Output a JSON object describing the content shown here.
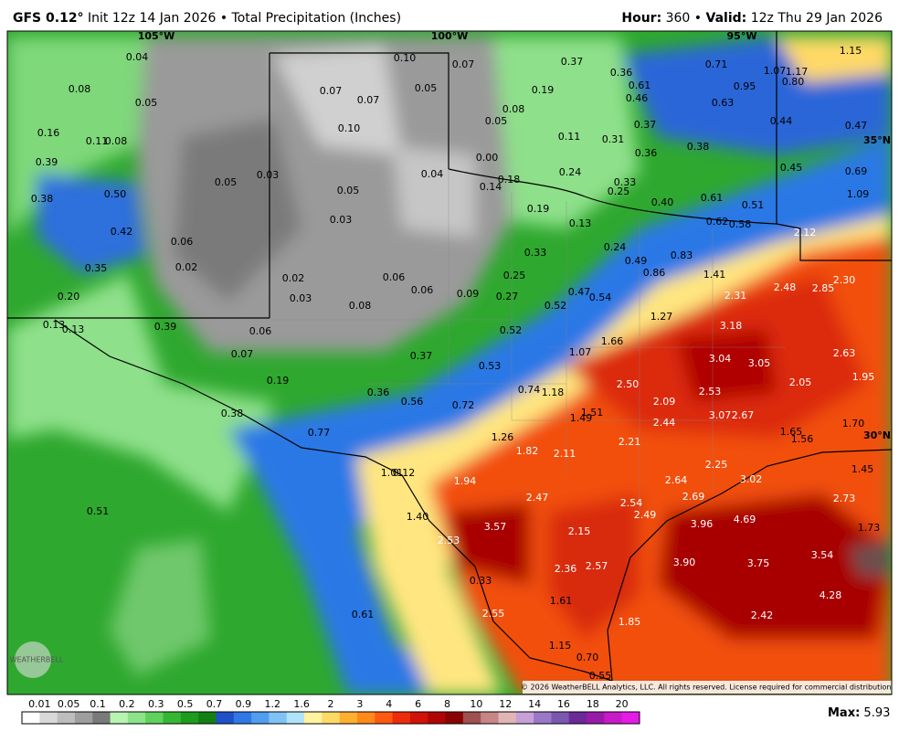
{
  "header": {
    "model": "GFS 0.12°",
    "desc": " Init 12z 14 Jan 2026 • Total Precipitation (Inches)",
    "hour_key": "Hour:",
    "hour": " 360 • ",
    "valid_key": "Valid:",
    "valid": " 12z Thu 29 Jan 2026"
  },
  "map": {
    "grid_labels": [
      "105°W",
      "100°W",
      "95°W",
      "35°N",
      "30°N"
    ],
    "labels": [
      "0.04",
      "0.10",
      "0.07",
      "0.37",
      "0.36",
      "0.71",
      "1.07",
      "1.17",
      "1.15",
      "0.08",
      "0.05",
      "0.07",
      "0.07",
      "0.05",
      "0.19",
      "0.61",
      "0.95",
      "0.80",
      "0.46",
      "0.63",
      "0.08",
      "0.05",
      "0.10",
      "0.16",
      "0.11",
      "0.08",
      "0.44",
      "0.47",
      "0.37",
      "0.11",
      "0.31",
      "0.36",
      "0.38",
      "0.39",
      "0.03",
      "0.05",
      "0.04",
      "0.00",
      "0.24",
      "0.18",
      "0.14",
      "0.33",
      "0.25",
      "0.45",
      "0.69",
      "0.38",
      "0.50",
      "0.05",
      "0.40",
      "0.61",
      "0.51",
      "1.09",
      "0.19",
      "0.03",
      "0.13",
      "0.62",
      "0.58",
      "0.42",
      "2.12",
      "0.06",
      "0.33",
      "0.24",
      "0.83",
      "0.49",
      "0.35",
      "0.02",
      "0.86",
      "1.41",
      "0.25",
      "0.06",
      "0.02",
      "2.48",
      "2.85",
      "2.30",
      "0.20",
      "0.06",
      "0.09",
      "0.27",
      "0.47",
      "0.54",
      "2.31",
      "0.03",
      "0.08",
      "0.52",
      "1.27",
      "0.13",
      "0.13",
      "0.39",
      "0.06",
      "3.18",
      "0.52",
      "1.66",
      "0.07",
      "0.37",
      "1.07",
      "3.04",
      "3.05",
      "2.63",
      "0.53",
      "1.95",
      "0.19",
      "0.36",
      "0.56",
      "0.72",
      "0.74",
      "1.18",
      "2.50",
      "2.53",
      "2.05",
      "2.09",
      "1.49",
      "1.51",
      "0.38",
      "3.07",
      "2.67",
      "2.44",
      "1.70",
      "0.77",
      "1.26",
      "1.65",
      "1.56",
      "2.21",
      "1.82",
      "2.11",
      "1.45",
      "1.01",
      "0.12",
      "1.94",
      "2.25",
      "2.64",
      "3.02",
      "2.47",
      "2.69",
      "2.73",
      "2.54",
      "0.51",
      "2.49",
      "1.40",
      "3.57",
      "3.96",
      "4.69",
      "2.15",
      "1.73",
      "2.53",
      "3.54",
      "3.90",
      "3.75",
      "2.36",
      "2.57",
      "0.33",
      "1.61",
      "4.28",
      "2.55",
      "0.61",
      "2.42",
      "1.85",
      "1.15",
      "0.70",
      "0.55"
    ],
    "copyright": "© 2026 WeatherBELL Analytics, LLC. All rights reserved. License required for commercial distribution.",
    "logo": "WEATHERBELL"
  },
  "colorbar": {
    "labels": [
      "0.01",
      "0.05",
      "0.1",
      "0.2",
      "0.3",
      "0.5",
      "0.7",
      "0.9",
      "1.2",
      "1.6",
      "2",
      "3",
      "4",
      "6",
      "8",
      "10",
      "12",
      "14",
      "16",
      "18",
      "20"
    ],
    "colors": [
      "#ffffff",
      "#d9d9d9",
      "#bdbdbd",
      "#9e9e9e",
      "#7a7a7a",
      "#b6f5b0",
      "#8ce38a",
      "#5fd15c",
      "#34b834",
      "#1e9c1e",
      "#138013",
      "#1e50c8",
      "#2f78e6",
      "#4f9ef0",
      "#7fc3f5",
      "#b0e3fa",
      "#fff3a0",
      "#ffd966",
      "#ffb030",
      "#ff8a1a",
      "#ff5a10",
      "#ee2b0b",
      "#d01208",
      "#b00505",
      "#8a0303",
      "#a05050",
      "#c78585",
      "#e2b5b5",
      "#c8a0d8",
      "#9a78c8",
      "#7a58b0",
      "#6a2a98",
      "#9a1aa8",
      "#c81ac8",
      "#e61ae6"
    ],
    "max_key": "Max:",
    "max": " 5.93"
  }
}
